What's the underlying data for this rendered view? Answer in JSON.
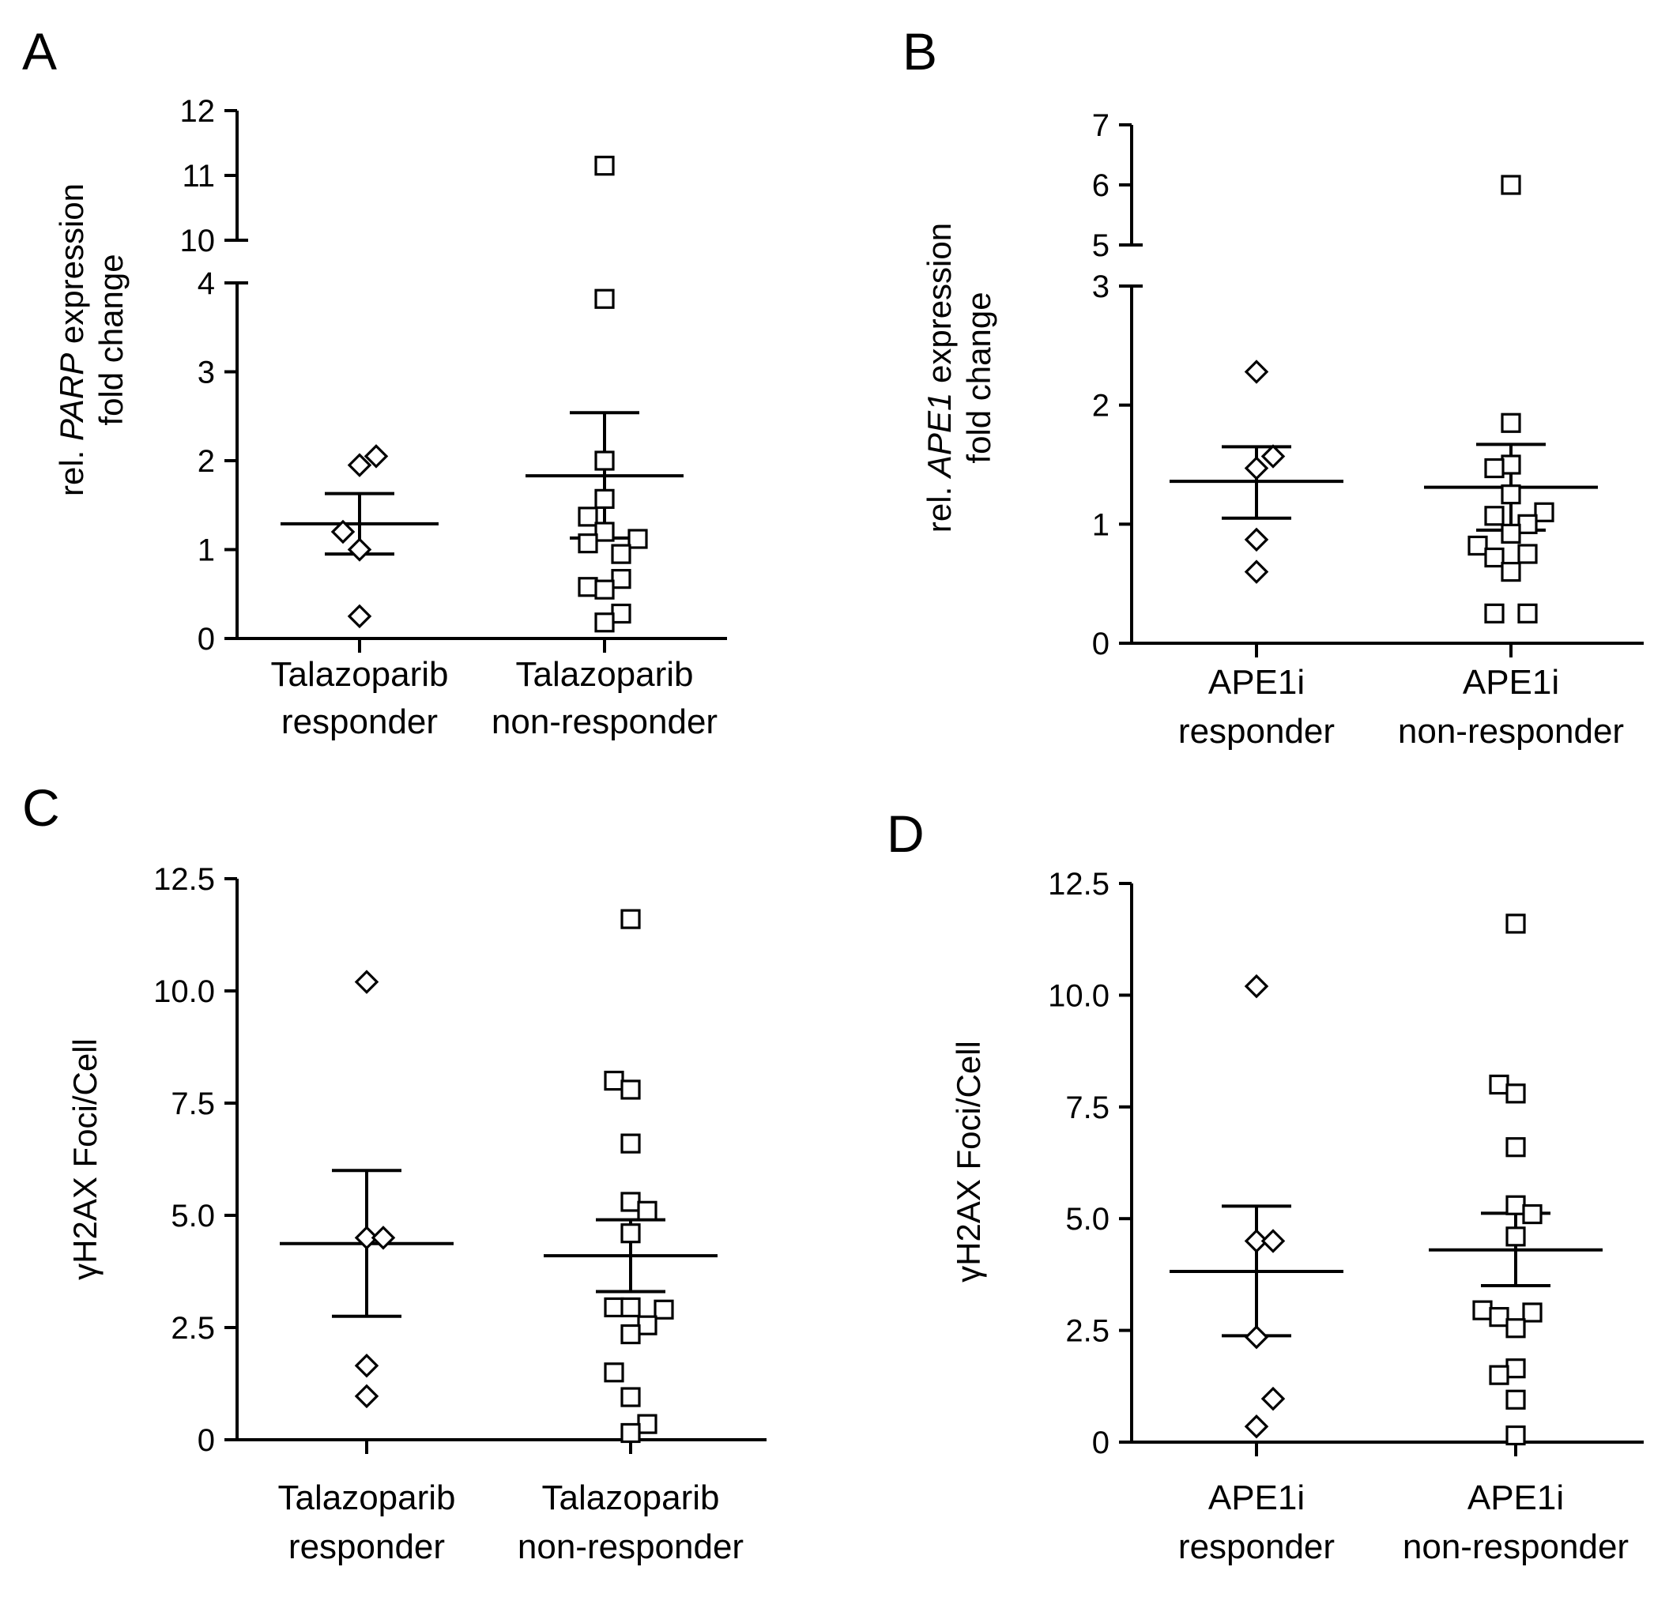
{
  "figure": {
    "panels": [
      "A",
      "B",
      "C",
      "D"
    ]
  },
  "chart_data": [
    {
      "panel": "A",
      "type": "scatter",
      "title": "",
      "ylabel_prefix": "rel. ",
      "ylabel_gene": "PARP",
      "ylabel_suffix": " expression",
      "ylabel_line2": "fold change",
      "axis_break": {
        "lower": [
          0,
          4
        ],
        "upper": [
          10,
          12
        ]
      },
      "yticks_lower": [
        0,
        1,
        2,
        3,
        4
      ],
      "yticks_upper": [
        10,
        11,
        12
      ],
      "ytick_labels_lower": [
        "0",
        "1",
        "2",
        "3",
        "4"
      ],
      "ytick_labels_upper": [
        "10",
        "11",
        "12"
      ],
      "categories": [
        {
          "line1": "Talazoparib",
          "line2": "responder"
        },
        {
          "line1": "Talazoparib",
          "line2": "non-responder"
        }
      ],
      "series": [
        {
          "name": "responder",
          "marker": "diamond",
          "values": [
            0.25,
            1.0,
            1.2,
            1.95,
            2.05
          ],
          "offsets": [
            0,
            0,
            -0.35,
            0,
            0.35
          ],
          "mean": 1.29,
          "sem_low": 0.95,
          "sem_high": 1.63
        },
        {
          "name": "non-responder",
          "marker": "square",
          "values": [
            11.15,
            3.82,
            2.0,
            1.57,
            1.37,
            1.2,
            1.12,
            1.07,
            0.95,
            0.67,
            0.58,
            0.55,
            0.28,
            0.18
          ],
          "offsets": [
            0,
            0,
            0,
            0,
            -0.35,
            0,
            0.7,
            -0.35,
            0.35,
            0.35,
            -0.35,
            0,
            0.35,
            0
          ],
          "mean": 1.83,
          "sem_low": 1.13,
          "sem_high": 2.54
        }
      ]
    },
    {
      "panel": "B",
      "type": "scatter",
      "title": "",
      "ylabel_prefix": "rel. ",
      "ylabel_gene": "APE1",
      "ylabel_suffix": " expression",
      "ylabel_line2": "fold change",
      "axis_break": {
        "lower": [
          0,
          3
        ],
        "upper": [
          5,
          7
        ]
      },
      "yticks_lower": [
        0,
        1,
        2,
        3
      ],
      "yticks_upper": [
        5,
        6,
        7
      ],
      "ytick_labels_lower": [
        "0",
        "1",
        "2",
        "3"
      ],
      "ytick_labels_upper": [
        "5",
        "6",
        "7"
      ],
      "categories": [
        {
          "line1": "APE1i",
          "line2": "responder"
        },
        {
          "line1": "APE1i",
          "line2": "non-responder"
        }
      ],
      "series": [
        {
          "name": "responder",
          "marker": "diamond",
          "values": [
            2.28,
            1.57,
            1.47,
            0.87,
            0.6
          ],
          "offsets": [
            0,
            0.35,
            0,
            0,
            0
          ],
          "mean": 1.36,
          "sem_low": 1.05,
          "sem_high": 1.65
        },
        {
          "name": "non-responder",
          "marker": "square",
          "values": [
            6.0,
            1.85,
            1.5,
            1.47,
            1.25,
            1.1,
            1.07,
            1.0,
            0.92,
            0.82,
            0.75,
            0.72,
            0.6,
            0.25,
            0.25
          ],
          "offsets": [
            0,
            0,
            0,
            -0.35,
            0,
            0.7,
            -0.35,
            0.35,
            0,
            -0.7,
            0.35,
            -0.35,
            0,
            -0.35,
            0.35
          ],
          "mean": 1.31,
          "sem_low": 0.95,
          "sem_high": 1.67
        }
      ]
    },
    {
      "panel": "C",
      "type": "scatter",
      "title": "",
      "ylabel": "γH2AX Foci/Cell",
      "ylim": [
        0,
        12.5
      ],
      "yticks": [
        0,
        2.5,
        5.0,
        7.5,
        10.0,
        12.5
      ],
      "ytick_labels": [
        "0",
        "2.5",
        "5.0",
        "7.5",
        "10.0",
        "12.5"
      ],
      "categories": [
        {
          "line1": "Talazoparib",
          "line2": "responder"
        },
        {
          "line1": "Talazoparib",
          "line2": "non-responder"
        }
      ],
      "series": [
        {
          "name": "responder",
          "marker": "diamond",
          "values": [
            10.2,
            4.5,
            4.5,
            1.65,
            0.97
          ],
          "offsets": [
            0,
            0,
            0.35,
            0,
            0
          ],
          "mean": 4.37,
          "sem_low": 2.75,
          "sem_high": 6.0
        },
        {
          "name": "non-responder",
          "marker": "square",
          "values": [
            11.6,
            8.0,
            7.8,
            6.6,
            5.3,
            5.1,
            4.6,
            2.95,
            2.95,
            2.9,
            2.55,
            2.35,
            1.5,
            0.95,
            0.35,
            0.15
          ],
          "offsets": [
            0,
            -0.35,
            0,
            0,
            0,
            0.35,
            0,
            -0.35,
            0,
            0.7,
            0.35,
            0,
            -0.35,
            0,
            0.35,
            0
          ],
          "mean": 4.1,
          "sem_low": 3.3,
          "sem_high": 4.9
        }
      ]
    },
    {
      "panel": "D",
      "type": "scatter",
      "title": "",
      "ylabel": "γH2AX Foci/Cell",
      "ylim": [
        0,
        12.5
      ],
      "yticks": [
        0,
        2.5,
        5.0,
        7.5,
        10.0,
        12.5
      ],
      "ytick_labels": [
        "0",
        "2.5",
        "5.0",
        "7.5",
        "10.0",
        "12.5"
      ],
      "categories": [
        {
          "line1": "APE1i",
          "line2": "responder"
        },
        {
          "line1": "APE1i",
          "line2": "non-responder"
        }
      ],
      "series": [
        {
          "name": "responder",
          "marker": "diamond",
          "values": [
            10.2,
            4.5,
            4.5,
            2.35,
            0.97,
            0.35
          ],
          "offsets": [
            0,
            0,
            0.35,
            0,
            0.35,
            0
          ],
          "mean": 3.82,
          "sem_low": 2.38,
          "sem_high": 5.28
        },
        {
          "name": "non-responder",
          "marker": "square",
          "values": [
            11.6,
            8.0,
            7.8,
            6.6,
            5.3,
            5.1,
            4.6,
            2.95,
            2.9,
            2.8,
            2.55,
            1.65,
            1.5,
            0.95,
            0.15
          ],
          "offsets": [
            0,
            -0.35,
            0,
            0,
            0,
            0.35,
            0,
            -0.7,
            0.35,
            -0.35,
            0,
            0,
            -0.35,
            0,
            0
          ],
          "mean": 4.3,
          "sem_low": 3.5,
          "sem_high": 5.12
        }
      ]
    }
  ]
}
